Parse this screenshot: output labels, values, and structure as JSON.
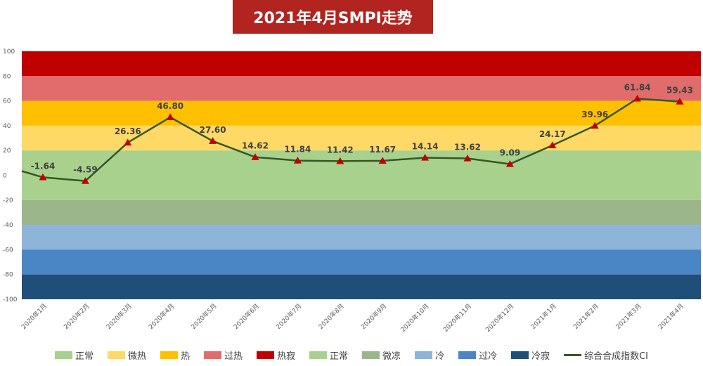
{
  "chart_data": {
    "type": "line",
    "title": "2021年4月SMPI走势",
    "xlabel": "",
    "ylabel": "",
    "ylim": [
      -100,
      100
    ],
    "yticks": [
      100,
      80,
      60,
      40,
      20,
      0,
      -20,
      -40,
      -60,
      -80,
      -100
    ],
    "grid": false,
    "legend_position": "bottom",
    "categories": [
      "2020年1月",
      "2020年2月",
      "2020年3月",
      "2020年4月",
      "2020年5月",
      "2020年6月",
      "2020年7月",
      "2020年8月",
      "2020年9月",
      "2020年10月",
      "2020年11月",
      "2020年12月",
      "2021年1月",
      "2021年2月",
      "2021年3月",
      "2021年4月"
    ],
    "series": [
      {
        "name": "综合合成指数CI",
        "color": "#375623",
        "marker_color": "#C00000",
        "values": [
          -1.64,
          -4.59,
          26.36,
          46.8,
          27.6,
          14.62,
          11.84,
          11.42,
          11.67,
          14.14,
          13.62,
          9.09,
          24.17,
          39.96,
          61.84,
          59.43
        ],
        "labels": [
          "-1.64",
          "-4.59",
          "26.36",
          "46.80",
          "27.60",
          "14.62",
          "11.84",
          "11.42",
          "11.67",
          "14.14",
          "13.62",
          "9.09",
          "24.17",
          "39.96",
          "61.84",
          "59.43"
        ]
      }
    ],
    "bands": [
      {
        "name": "热寂",
        "from": 80,
        "to": 100,
        "color": "#C00000"
      },
      {
        "name": "过热",
        "from": 60,
        "to": 80,
        "color": "#E06C6C"
      },
      {
        "name": "热",
        "from": 40,
        "to": 60,
        "color": "#FFC000"
      },
      {
        "name": "微热",
        "from": 20,
        "to": 40,
        "color": "#FFD966"
      },
      {
        "name": "正常",
        "from": 0,
        "to": 20,
        "color": "#A9D18E"
      },
      {
        "name": "正常",
        "from": -20,
        "to": 0,
        "color": "#A9D18E"
      },
      {
        "name": "微凉",
        "from": -40,
        "to": -20,
        "color": "#9BB68A"
      },
      {
        "name": "冷",
        "from": -60,
        "to": -40,
        "color": "#8EB4DA"
      },
      {
        "name": "过冷",
        "from": -80,
        "to": -60,
        "color": "#4A86C5"
      },
      {
        "name": "冷寂",
        "from": -100,
        "to": -80,
        "color": "#1F4E79"
      }
    ],
    "legend": [
      {
        "label": "正常",
        "color": "#A9D18E",
        "kind": "swatch"
      },
      {
        "label": "微热",
        "color": "#FFD966",
        "kind": "swatch"
      },
      {
        "label": "热",
        "color": "#FFC000",
        "kind": "swatch"
      },
      {
        "label": "过热",
        "color": "#E06C6C",
        "kind": "swatch"
      },
      {
        "label": "热寂",
        "color": "#C00000",
        "kind": "swatch"
      },
      {
        "label": "正常",
        "color": "#A9D18E",
        "kind": "swatch"
      },
      {
        "label": "微凉",
        "color": "#9BB68A",
        "kind": "swatch"
      },
      {
        "label": "冷",
        "color": "#8EB4DA",
        "kind": "swatch"
      },
      {
        "label": "过冷",
        "color": "#4A86C5",
        "kind": "swatch"
      },
      {
        "label": "冷寂",
        "color": "#1F4E79",
        "kind": "swatch"
      },
      {
        "label": "综合合成指数CI",
        "color": "#375623",
        "kind": "line"
      }
    ]
  }
}
